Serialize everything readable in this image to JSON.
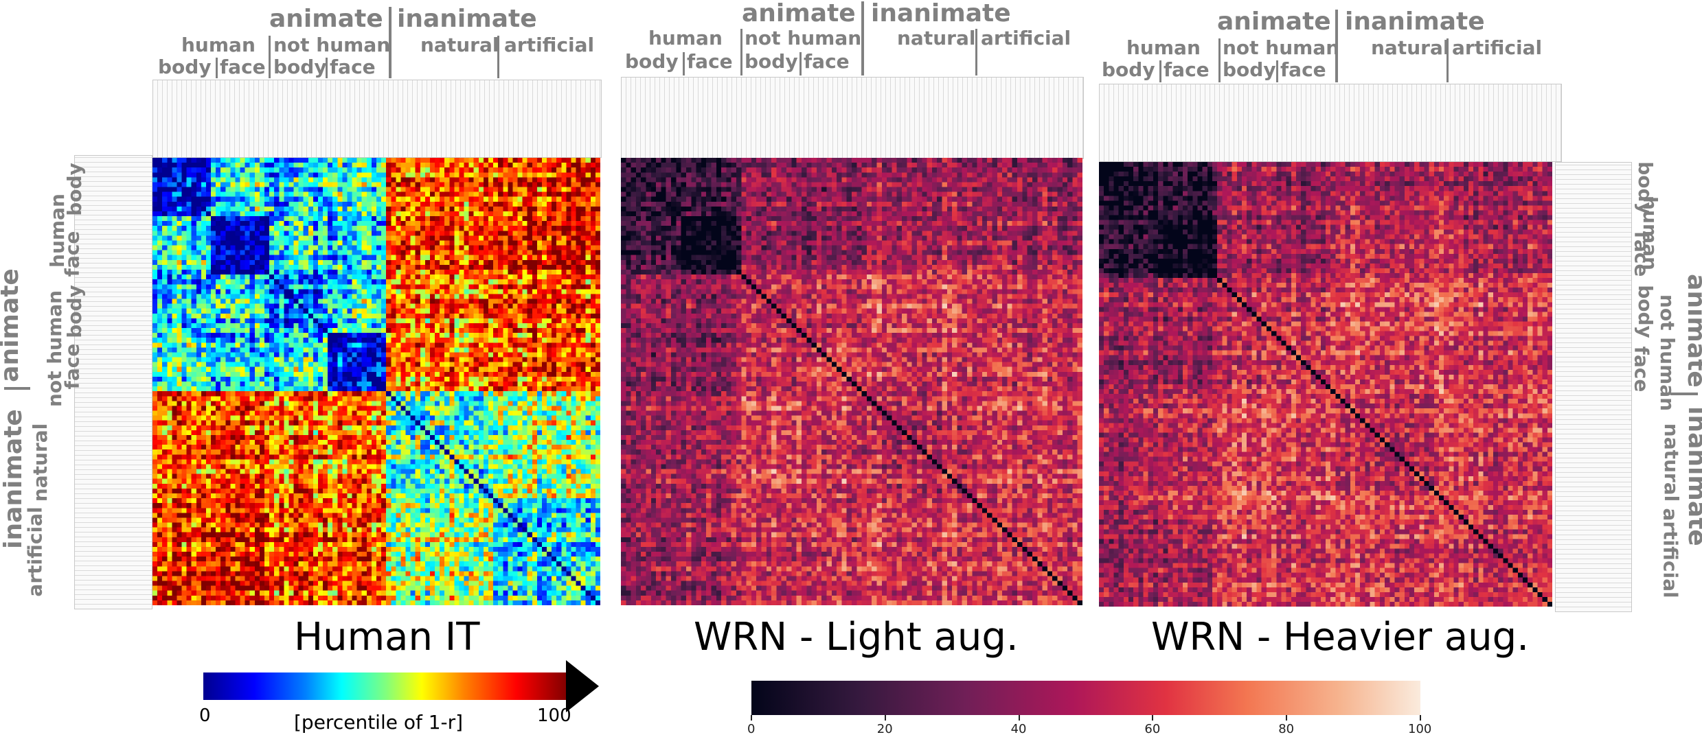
{
  "panels": {
    "human_it": {
      "title": "Human IT"
    },
    "wrn_light": {
      "title": "WRN - Light aug."
    },
    "wrn_heavier": {
      "title": "WRN - Heavier aug."
    }
  },
  "category_labels": {
    "animate": "animate",
    "inanimate": "inanimate",
    "human": "human",
    "not_human": "not human",
    "body": "body",
    "face": "face",
    "natural": "natural",
    "artificial": "artificial"
  },
  "colorbar_it": {
    "min_label": "0",
    "max_label": "100",
    "axis_label": "[percentile of 1-r]",
    "colormap": "jet"
  },
  "colorbar_wrn": {
    "ticks": [
      "0",
      "20",
      "40",
      "60",
      "80",
      "100"
    ],
    "colormap": "rocket"
  },
  "chart_data": [
    {
      "type": "heatmap",
      "title": "Human IT",
      "n_stimuli": 92,
      "categories": [
        "human body",
        "human face",
        "not human body",
        "not human face",
        "natural",
        "artificial"
      ],
      "category_sizes": [
        12,
        12,
        12,
        12,
        22,
        22
      ],
      "value_range": [
        0,
        100
      ],
      "block_mean_values": [
        [
          12,
          40,
          35,
          45,
          80,
          85
        ],
        [
          40,
          8,
          40,
          35,
          82,
          88
        ],
        [
          35,
          40,
          25,
          40,
          75,
          80
        ],
        [
          45,
          35,
          40,
          10,
          75,
          80
        ],
        [
          80,
          82,
          75,
          75,
          45,
          55
        ],
        [
          85,
          88,
          80,
          80,
          55,
          40
        ]
      ],
      "diagonal_value": 0
    },
    {
      "type": "heatmap",
      "title": "WRN - Light aug.",
      "n_stimuli": 92,
      "categories": [
        "human body",
        "human face",
        "not human body",
        "not human face",
        "natural",
        "artificial"
      ],
      "category_sizes": [
        12,
        12,
        12,
        12,
        22,
        22
      ],
      "value_range": [
        0,
        100
      ],
      "block_mean_values": [
        [
          12,
          20,
          40,
          38,
          45,
          40
        ],
        [
          20,
          0,
          42,
          40,
          50,
          45
        ],
        [
          40,
          42,
          55,
          55,
          65,
          55
        ],
        [
          38,
          40,
          55,
          60,
          60,
          55
        ],
        [
          45,
          50,
          65,
          60,
          55,
          60
        ],
        [
          40,
          45,
          55,
          55,
          60,
          55
        ]
      ],
      "diagonal_value": 0
    },
    {
      "type": "heatmap",
      "title": "WRN - Heavier aug.",
      "n_stimuli": 92,
      "categories": [
        "human body",
        "human face",
        "not human body",
        "not human face",
        "natural",
        "artificial"
      ],
      "category_sizes": [
        12,
        12,
        12,
        12,
        22,
        22
      ],
      "value_range": [
        0,
        100
      ],
      "block_mean_values": [
        [
          10,
          15,
          45,
          45,
          50,
          45
        ],
        [
          15,
          0,
          45,
          45,
          55,
          50
        ],
        [
          45,
          45,
          55,
          55,
          65,
          60
        ],
        [
          45,
          45,
          55,
          60,
          62,
          58
        ],
        [
          50,
          55,
          65,
          62,
          55,
          60
        ],
        [
          45,
          50,
          60,
          58,
          60,
          55
        ]
      ],
      "diagonal_value": 0
    }
  ]
}
